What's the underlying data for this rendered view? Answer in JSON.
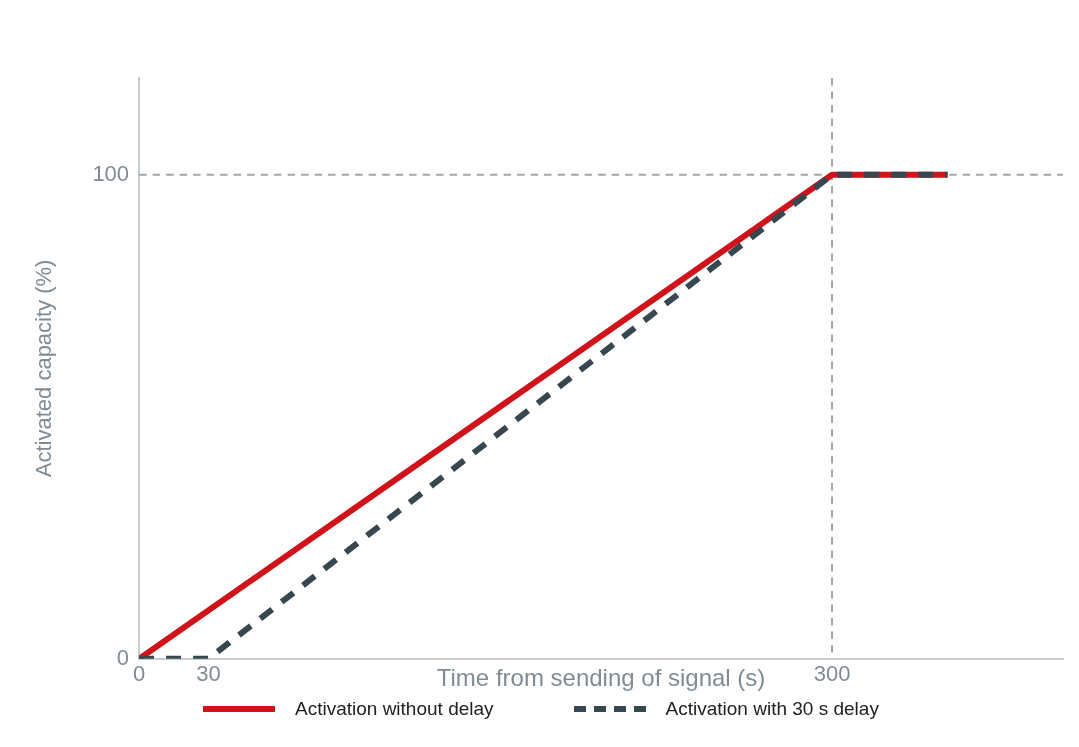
{
  "chart_data": {
    "type": "line",
    "xlabel": "Time from sending of signal (s)",
    "ylabel": "Activated capacity (%)",
    "xlim": [
      0,
      400
    ],
    "xticks": [
      0,
      30,
      300
    ],
    "ylim": [
      0,
      120
    ],
    "yticks": [
      0,
      100
    ],
    "grid": false,
    "legend": "bottom",
    "marker": "none",
    "series": [
      {
        "name": "Activation without delay",
        "color": "#d0121b",
        "line_style": "solid",
        "x": [
          0,
          300,
          350
        ],
        "values": [
          0,
          100,
          100
        ]
      },
      {
        "name": "Activation with 30 s delay",
        "color": "#37474f",
        "line_style": "dashed",
        "x": [
          0,
          30,
          300,
          350
        ],
        "values": [
          0,
          0,
          100,
          100
        ]
      }
    ],
    "ref_lines": [
      {
        "axis": "x",
        "value": 300,
        "color": "#a0a8ae",
        "line_style": "dashed"
      },
      {
        "axis": "y",
        "value": 100,
        "color": "#a0a8ae",
        "line_style": "dashed"
      }
    ]
  }
}
